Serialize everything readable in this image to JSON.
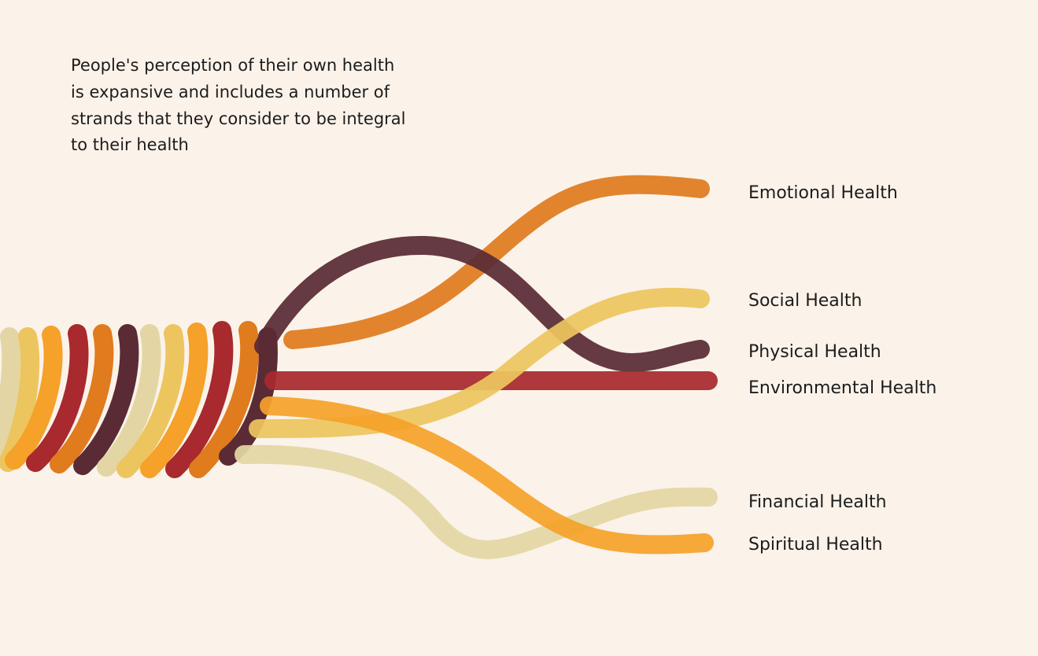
{
  "intro": {
    "lines": [
      "People's perception of their own health",
      "is expansive and includes a number of",
      "strands that they consider to be integral",
      "to their health"
    ]
  },
  "strands": [
    {
      "label": "Emotional Health"
    },
    {
      "label": "Social Health"
    },
    {
      "label": "Physical Health"
    },
    {
      "label": "Environmental Health"
    },
    {
      "label": "Financial Health"
    },
    {
      "label": "Spiritual Health"
    }
  ]
}
